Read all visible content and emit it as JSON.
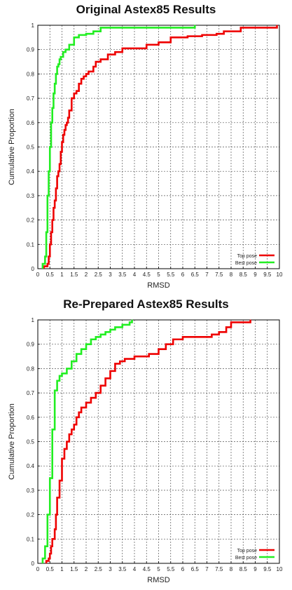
{
  "chart_data": [
    {
      "type": "line",
      "title": "Original Astex85 Results",
      "xlabel": "RMSD",
      "ylabel": "Cumulative Proportion",
      "xlim": [
        0,
        10
      ],
      "ylim": [
        0,
        1
      ],
      "xticks": [
        "0",
        "0.5",
        "1",
        "1.5",
        "2",
        "2.5",
        "3",
        "3.5",
        "4",
        "4.5",
        "5",
        "5.5",
        "6",
        "6.5",
        "7",
        "7.5",
        "8",
        "8.5",
        "9",
        "9.5",
        "10"
      ],
      "yticks": [
        "0",
        "0.1",
        "0.2",
        "0.3",
        "0.4",
        "0.5",
        "0.6",
        "0.7",
        "0.8",
        "0.9",
        "1"
      ],
      "grid": true,
      "legend_position": "bottom-right",
      "series": [
        {
          "name": "Top pose",
          "color": "#ee0000",
          "step": true,
          "x": [
            0.25,
            0.4,
            0.45,
            0.5,
            0.55,
            0.6,
            0.65,
            0.7,
            0.75,
            0.8,
            0.85,
            0.9,
            0.95,
            1.0,
            1.05,
            1.1,
            1.15,
            1.2,
            1.25,
            1.3,
            1.4,
            1.5,
            1.6,
            1.7,
            1.8,
            1.9,
            2.0,
            2.1,
            2.3,
            2.4,
            2.6,
            2.9,
            3.2,
            3.5,
            4.5,
            5.0,
            5.5,
            6.2,
            6.8,
            7.4,
            7.7,
            8.4,
            9.9
          ],
          "y": [
            0.01,
            0.02,
            0.05,
            0.1,
            0.15,
            0.2,
            0.25,
            0.28,
            0.33,
            0.38,
            0.4,
            0.43,
            0.48,
            0.52,
            0.55,
            0.57,
            0.59,
            0.6,
            0.62,
            0.65,
            0.7,
            0.72,
            0.73,
            0.76,
            0.78,
            0.79,
            0.8,
            0.81,
            0.83,
            0.85,
            0.86,
            0.88,
            0.89,
            0.905,
            0.92,
            0.93,
            0.95,
            0.955,
            0.96,
            0.965,
            0.975,
            0.99,
            1.0
          ]
        },
        {
          "name": "Best pose",
          "color": "#22ee22",
          "step": true,
          "x": [
            0.2,
            0.3,
            0.35,
            0.4,
            0.45,
            0.5,
            0.55,
            0.6,
            0.65,
            0.7,
            0.75,
            0.8,
            0.85,
            0.9,
            0.95,
            1.05,
            1.15,
            1.3,
            1.5,
            1.7,
            2.0,
            2.3,
            2.6,
            6.5
          ],
          "y": [
            0.02,
            0.05,
            0.15,
            0.3,
            0.4,
            0.5,
            0.6,
            0.66,
            0.72,
            0.76,
            0.8,
            0.83,
            0.84,
            0.86,
            0.87,
            0.89,
            0.9,
            0.92,
            0.95,
            0.96,
            0.965,
            0.975,
            0.99,
            1.0
          ]
        }
      ]
    },
    {
      "type": "line",
      "title": "Re-Prepared Astex85 Results",
      "xlabel": "RMSD",
      "ylabel": "Cumulative Proportion",
      "xlim": [
        0,
        10
      ],
      "ylim": [
        0,
        1
      ],
      "xticks": [
        "0",
        "0.5",
        "1",
        "1.5",
        "2",
        "2.5",
        "3",
        "3.5",
        "4",
        "4.5",
        "5",
        "5.5",
        "6",
        "6.5",
        "7",
        "7.5",
        "8",
        "8.5",
        "9",
        "9.5",
        "10"
      ],
      "yticks": [
        "0",
        "0.1",
        "0.2",
        "0.3",
        "0.4",
        "0.5",
        "0.6",
        "0.7",
        "0.8",
        "0.9",
        "1"
      ],
      "grid": true,
      "legend_position": "bottom-right",
      "series": [
        {
          "name": "Top pose",
          "color": "#ee0000",
          "step": true,
          "x": [
            0.35,
            0.45,
            0.5,
            0.55,
            0.6,
            0.7,
            0.75,
            0.8,
            0.9,
            1.0,
            1.1,
            1.2,
            1.3,
            1.4,
            1.5,
            1.6,
            1.7,
            1.8,
            2.0,
            2.2,
            2.4,
            2.6,
            2.8,
            3.0,
            3.2,
            3.4,
            3.6,
            4.0,
            4.6,
            5.0,
            5.3,
            5.6,
            6.0,
            7.2,
            7.5,
            7.8,
            8.0,
            8.8
          ],
          "y": [
            0.01,
            0.02,
            0.04,
            0.07,
            0.1,
            0.14,
            0.2,
            0.27,
            0.34,
            0.43,
            0.47,
            0.5,
            0.53,
            0.55,
            0.57,
            0.6,
            0.62,
            0.64,
            0.66,
            0.68,
            0.7,
            0.73,
            0.76,
            0.79,
            0.82,
            0.83,
            0.84,
            0.85,
            0.86,
            0.88,
            0.9,
            0.92,
            0.93,
            0.94,
            0.95,
            0.97,
            0.99,
            1.0
          ]
        },
        {
          "name": "Best pose",
          "color": "#22ee22",
          "step": true,
          "x": [
            0.2,
            0.3,
            0.4,
            0.5,
            0.6,
            0.7,
            0.8,
            0.9,
            1.0,
            1.2,
            1.4,
            1.6,
            1.8,
            2.0,
            2.2,
            2.4,
            2.6,
            2.8,
            3.0,
            3.2,
            3.5,
            3.8,
            3.9
          ],
          "y": [
            0.02,
            0.07,
            0.2,
            0.35,
            0.55,
            0.71,
            0.75,
            0.77,
            0.78,
            0.8,
            0.83,
            0.86,
            0.88,
            0.9,
            0.92,
            0.93,
            0.94,
            0.95,
            0.96,
            0.97,
            0.98,
            0.99,
            1.0
          ]
        }
      ]
    }
  ]
}
